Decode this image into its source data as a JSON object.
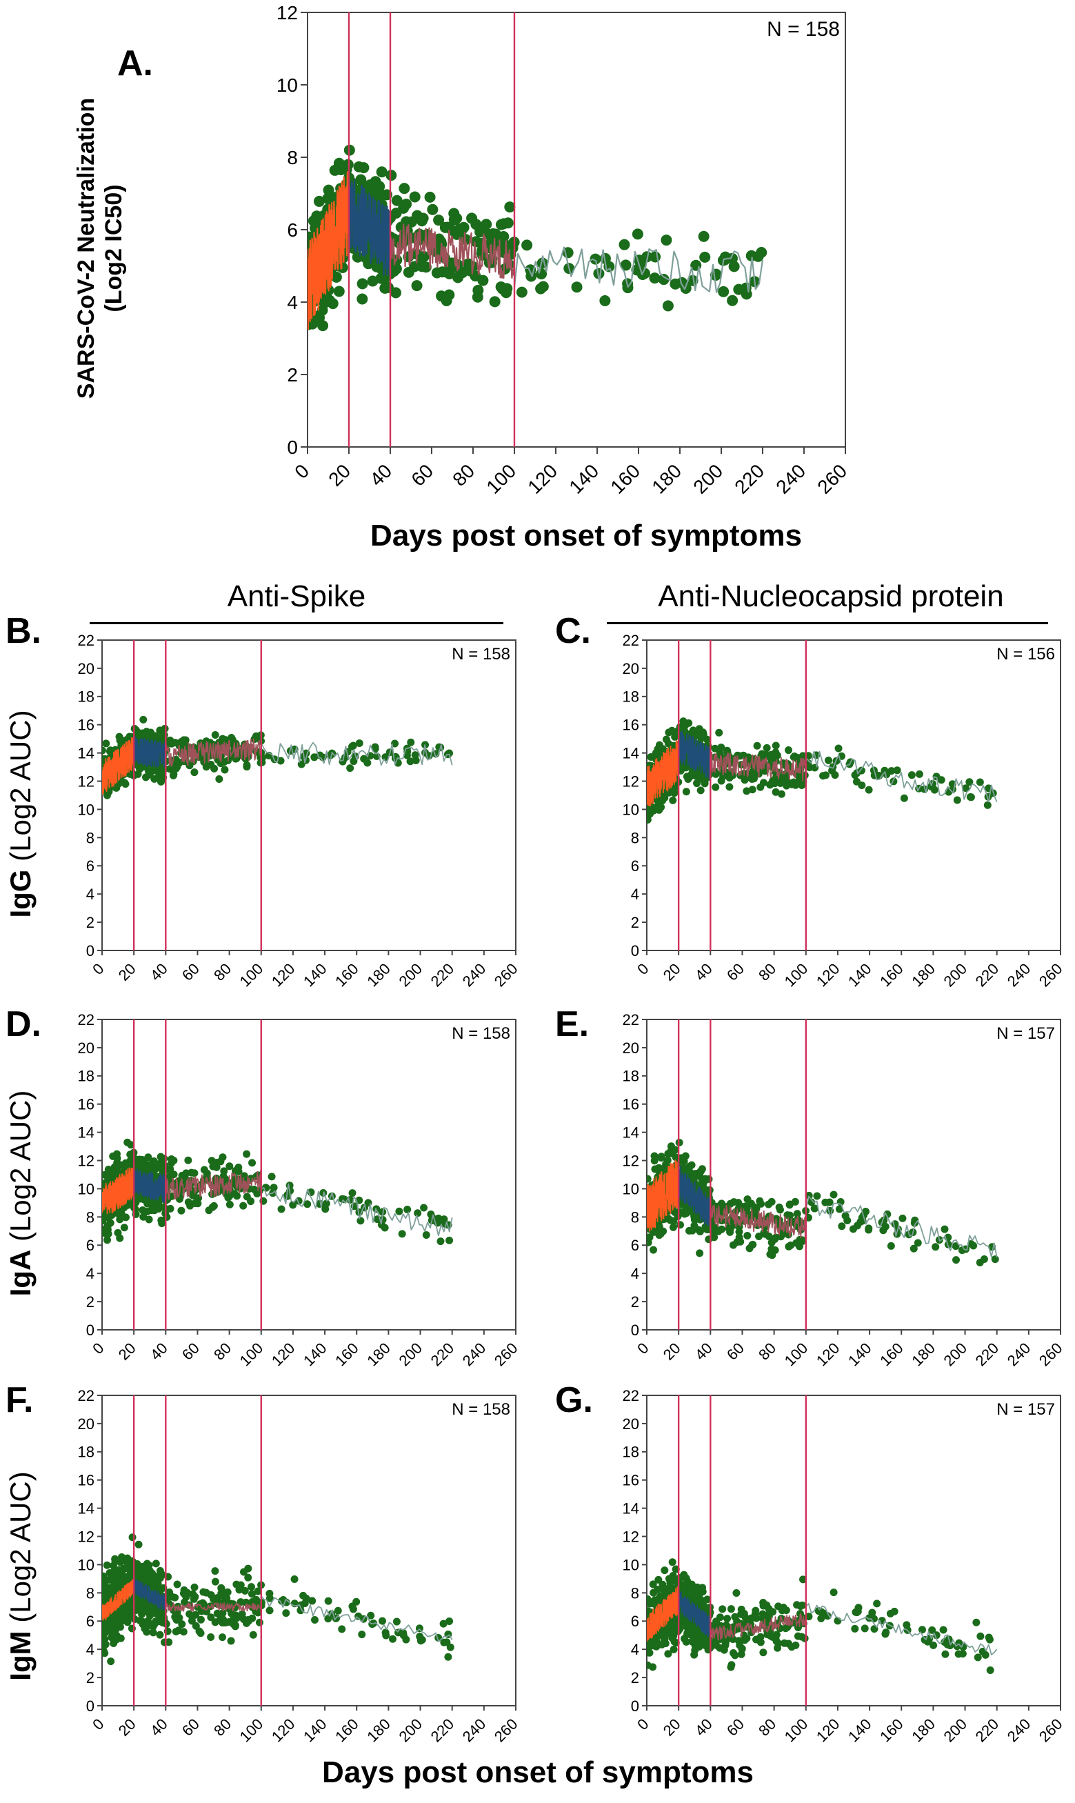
{
  "figure": {
    "xlabel_top": "Days post onset of symptoms",
    "xlabel_bottom": "Days post onset of symptoms",
    "col_spike": "Anti-Spike",
    "col_nucleo": "Anti-Nucleocapsid protein",
    "ylabel_A_line1": "SARS-CoV-2 Neutralization",
    "ylabel_A_line2": "(Log2 IC50)",
    "ylabel_IgG_iso": "IgG",
    "ylabel_IgA_iso": "IgA",
    "ylabel_IgM_iso": "IgM",
    "ylabel_unit": "(Log2 AUC)"
  },
  "colors": {
    "points": "#1a6b1a",
    "phase1": "#ff5a1f",
    "phase2": "#1f4e79",
    "phase3": "#a0525a",
    "phase4": "#7fa09a",
    "vline": "#d1305a",
    "axis": "#555555"
  },
  "chart_data": [
    {
      "id": "A",
      "panel_label": "A.",
      "type": "scatter",
      "ylabel": "SARS-CoV-2 Neutralization (Log2 IC50)",
      "xlabel": "Days post onset of symptoms",
      "n_label": "N = 158",
      "xlim": [
        0,
        260
      ],
      "ylim": [
        0,
        12
      ],
      "yticks": [
        0,
        2,
        4,
        6,
        8,
        10,
        12
      ],
      "xticks": [
        0,
        20,
        40,
        60,
        80,
        100,
        120,
        140,
        160,
        180,
        200,
        220,
        240,
        260
      ],
      "tick_labels": [
        "0",
        "20",
        "40",
        "60",
        "80",
        "100",
        "120",
        "140",
        "160",
        "180",
        "200",
        "220",
        "240",
        "260"
      ],
      "vlines": [
        20,
        40,
        100
      ],
      "trend": {
        "p1": [
          4.4,
          6.5
        ],
        "p2": [
          6.5,
          5.6
        ],
        "p3": [
          5.6,
          5.2
        ],
        "p4": [
          5.0,
          4.8
        ],
        "spread1": 1.2,
        "spread2": 1.0,
        "spread3": 0.6,
        "spread4": 0.6
      },
      "cloud": {
        "base": 5.0,
        "spread": 1.6,
        "floor": 3.3,
        "max": 10.4,
        "seed": 11
      }
    },
    {
      "id": "B",
      "panel_label": "B.",
      "type": "scatter",
      "ylabel": "IgG (Log2 AUC)",
      "xlabel": "",
      "n_label": "N = 158",
      "xlim": [
        0,
        260
      ],
      "ylim": [
        0,
        22
      ],
      "yticks": [
        0,
        2,
        4,
        6,
        8,
        10,
        12,
        14,
        16,
        18,
        20,
        22
      ],
      "xticks": [
        0,
        20,
        40,
        60,
        80,
        100,
        120,
        140,
        160,
        180,
        200,
        220,
        240,
        260
      ],
      "tick_labels": [
        "0",
        "20",
        "40",
        "60",
        "80",
        "100",
        "120",
        "140",
        "160",
        "180",
        "200",
        "220",
        "240",
        "260"
      ],
      "vlines": [
        20,
        40,
        100
      ],
      "trend": {
        "p1": [
          12.2,
          14.0
        ],
        "p2": [
          14.2,
          13.8
        ],
        "p3": [
          13.8,
          14.3
        ],
        "p4": [
          14.0,
          13.9
        ],
        "spread1": 1.2,
        "spread2": 1.0,
        "spread3": 0.8,
        "spread4": 0.8
      },
      "cloud": {
        "base": 13.8,
        "spread": 1.6,
        "floor": 8.0,
        "max": 19.4,
        "seed": 23
      }
    },
    {
      "id": "C",
      "panel_label": "C.",
      "type": "scatter",
      "ylabel": "",
      "xlabel": "",
      "n_label": "N = 156",
      "xlim": [
        0,
        260
      ],
      "ylim": [
        0,
        22
      ],
      "yticks": [
        0,
        2,
        4,
        6,
        8,
        10,
        12,
        14,
        16,
        18,
        20,
        22
      ],
      "xticks": [
        0,
        20,
        40,
        60,
        80,
        100,
        120,
        140,
        160,
        180,
        200,
        220,
        240,
        260
      ],
      "tick_labels": [
        "0",
        "20",
        "40",
        "60",
        "80",
        "100",
        "120",
        "140",
        "160",
        "180",
        "200",
        "220",
        "240",
        "260"
      ],
      "vlines": [
        20,
        40,
        100
      ],
      "trend": {
        "p1": [
          11.5,
          13.5
        ],
        "p2": [
          14.5,
          13.3
        ],
        "p3": [
          13.3,
          12.8
        ],
        "p4": [
          13.5,
          11.0
        ],
        "spread1": 1.5,
        "spread2": 1.2,
        "spread3": 0.8,
        "spread4": 0.8
      },
      "cloud": {
        "base": 12.5,
        "spread": 2.0,
        "floor": 6.0,
        "max": 21.0,
        "seed": 37
      }
    },
    {
      "id": "D",
      "panel_label": "D.",
      "type": "scatter",
      "ylabel": "IgA (Log2 AUC)",
      "xlabel": "",
      "n_label": "N = 158",
      "xlim": [
        0,
        260
      ],
      "ylim": [
        0,
        22
      ],
      "yticks": [
        0,
        2,
        4,
        6,
        8,
        10,
        12,
        14,
        16,
        18,
        20,
        22
      ],
      "xticks": [
        0,
        20,
        40,
        60,
        80,
        100,
        120,
        140,
        160,
        180,
        200,
        220,
        240,
        260
      ],
      "tick_labels": [
        "0",
        "20",
        "40",
        "60",
        "80",
        "100",
        "120",
        "140",
        "160",
        "180",
        "200",
        "220",
        "240",
        "260"
      ],
      "vlines": [
        20,
        40,
        100
      ],
      "trend": {
        "p1": [
          9.0,
          10.5
        ],
        "p2": [
          10.5,
          10.0
        ],
        "p3": [
          10.0,
          10.5
        ],
        "p4": [
          10.0,
          7.2
        ],
        "spread1": 1.2,
        "spread2": 1.0,
        "spread3": 0.8,
        "spread4": 0.8
      },
      "cloud": {
        "base": 10.0,
        "spread": 2.2,
        "floor": 1.5,
        "max": 17.5,
        "seed": 41
      }
    },
    {
      "id": "E",
      "panel_label": "E.",
      "type": "scatter",
      "ylabel": "",
      "xlabel": "",
      "n_label": "N = 157",
      "xlim": [
        0,
        260
      ],
      "ylim": [
        0,
        22
      ],
      "yticks": [
        0,
        2,
        4,
        6,
        8,
        10,
        12,
        14,
        16,
        18,
        20,
        22
      ],
      "xticks": [
        0,
        20,
        40,
        60,
        80,
        100,
        120,
        140,
        160,
        180,
        200,
        220,
        240,
        260
      ],
      "tick_labels": [
        "0",
        "20",
        "40",
        "60",
        "80",
        "100",
        "120",
        "140",
        "160",
        "180",
        "200",
        "220",
        "240",
        "260"
      ],
      "vlines": [
        20,
        40,
        100
      ],
      "trend": {
        "p1": [
          8.5,
          10.5
        ],
        "p2": [
          10.5,
          8.2
        ],
        "p3": [
          8.2,
          7.2
        ],
        "p4": [
          9.0,
          5.5
        ],
        "spread1": 1.8,
        "spread2": 1.2,
        "spread3": 0.8,
        "spread4": 0.8
      },
      "cloud": {
        "base": 8.5,
        "spread": 2.5,
        "floor": 2.0,
        "max": 18.0,
        "seed": 53
      }
    },
    {
      "id": "F",
      "panel_label": "F.",
      "type": "scatter",
      "ylabel": "IgM (Log2 AUC)",
      "xlabel": "Days post onset of symptoms",
      "n_label": "N = 158",
      "xlim": [
        0,
        260
      ],
      "ylim": [
        0,
        22
      ],
      "yticks": [
        0,
        2,
        4,
        6,
        8,
        10,
        12,
        14,
        16,
        18,
        20,
        22
      ],
      "xticks": [
        0,
        20,
        40,
        60,
        80,
        100,
        120,
        140,
        160,
        180,
        200,
        220,
        240,
        260
      ],
      "tick_labels": [
        "0",
        "20",
        "40",
        "60",
        "80",
        "100",
        "120",
        "140",
        "160",
        "180",
        "200",
        "220",
        "240",
        "260"
      ],
      "vlines": [
        20,
        40,
        100
      ],
      "trend": {
        "p1": [
          6.5,
          8.5
        ],
        "p2": [
          8.5,
          7.2
        ],
        "p3": [
          7.0,
          7.0
        ],
        "p4": [
          7.5,
          4.7
        ],
        "spread1": 0.6,
        "spread2": 0.6,
        "spread3": 0.3,
        "spread4": 0.4
      },
      "cloud": {
        "base": 7.2,
        "spread": 2.6,
        "floor": 0.0,
        "max": 14.0,
        "seed": 67
      }
    },
    {
      "id": "G",
      "panel_label": "G.",
      "type": "scatter",
      "ylabel": "",
      "xlabel": "Days post onset of symptoms",
      "n_label": "N = 157",
      "xlim": [
        0,
        260
      ],
      "ylim": [
        0,
        22
      ],
      "yticks": [
        0,
        2,
        4,
        6,
        8,
        10,
        12,
        14,
        16,
        18,
        20,
        22
      ],
      "xticks": [
        0,
        20,
        40,
        60,
        80,
        100,
        120,
        140,
        160,
        180,
        200,
        220,
        240,
        260
      ],
      "tick_labels": [
        "0",
        "20",
        "40",
        "60",
        "80",
        "100",
        "120",
        "140",
        "160",
        "180",
        "200",
        "220",
        "240",
        "260"
      ],
      "vlines": [
        20,
        40,
        100
      ],
      "trend": {
        "p1": [
          5.5,
          7.5
        ],
        "p2": [
          7.5,
          5.5
        ],
        "p3": [
          5.0,
          6.2
        ],
        "p4": [
          7.0,
          3.8
        ],
        "spread1": 1.0,
        "spread2": 0.8,
        "spread3": 0.5,
        "spread4": 0.4
      },
      "cloud": {
        "base": 5.8,
        "spread": 2.4,
        "floor": 0.0,
        "max": 14.3,
        "seed": 79
      }
    }
  ]
}
